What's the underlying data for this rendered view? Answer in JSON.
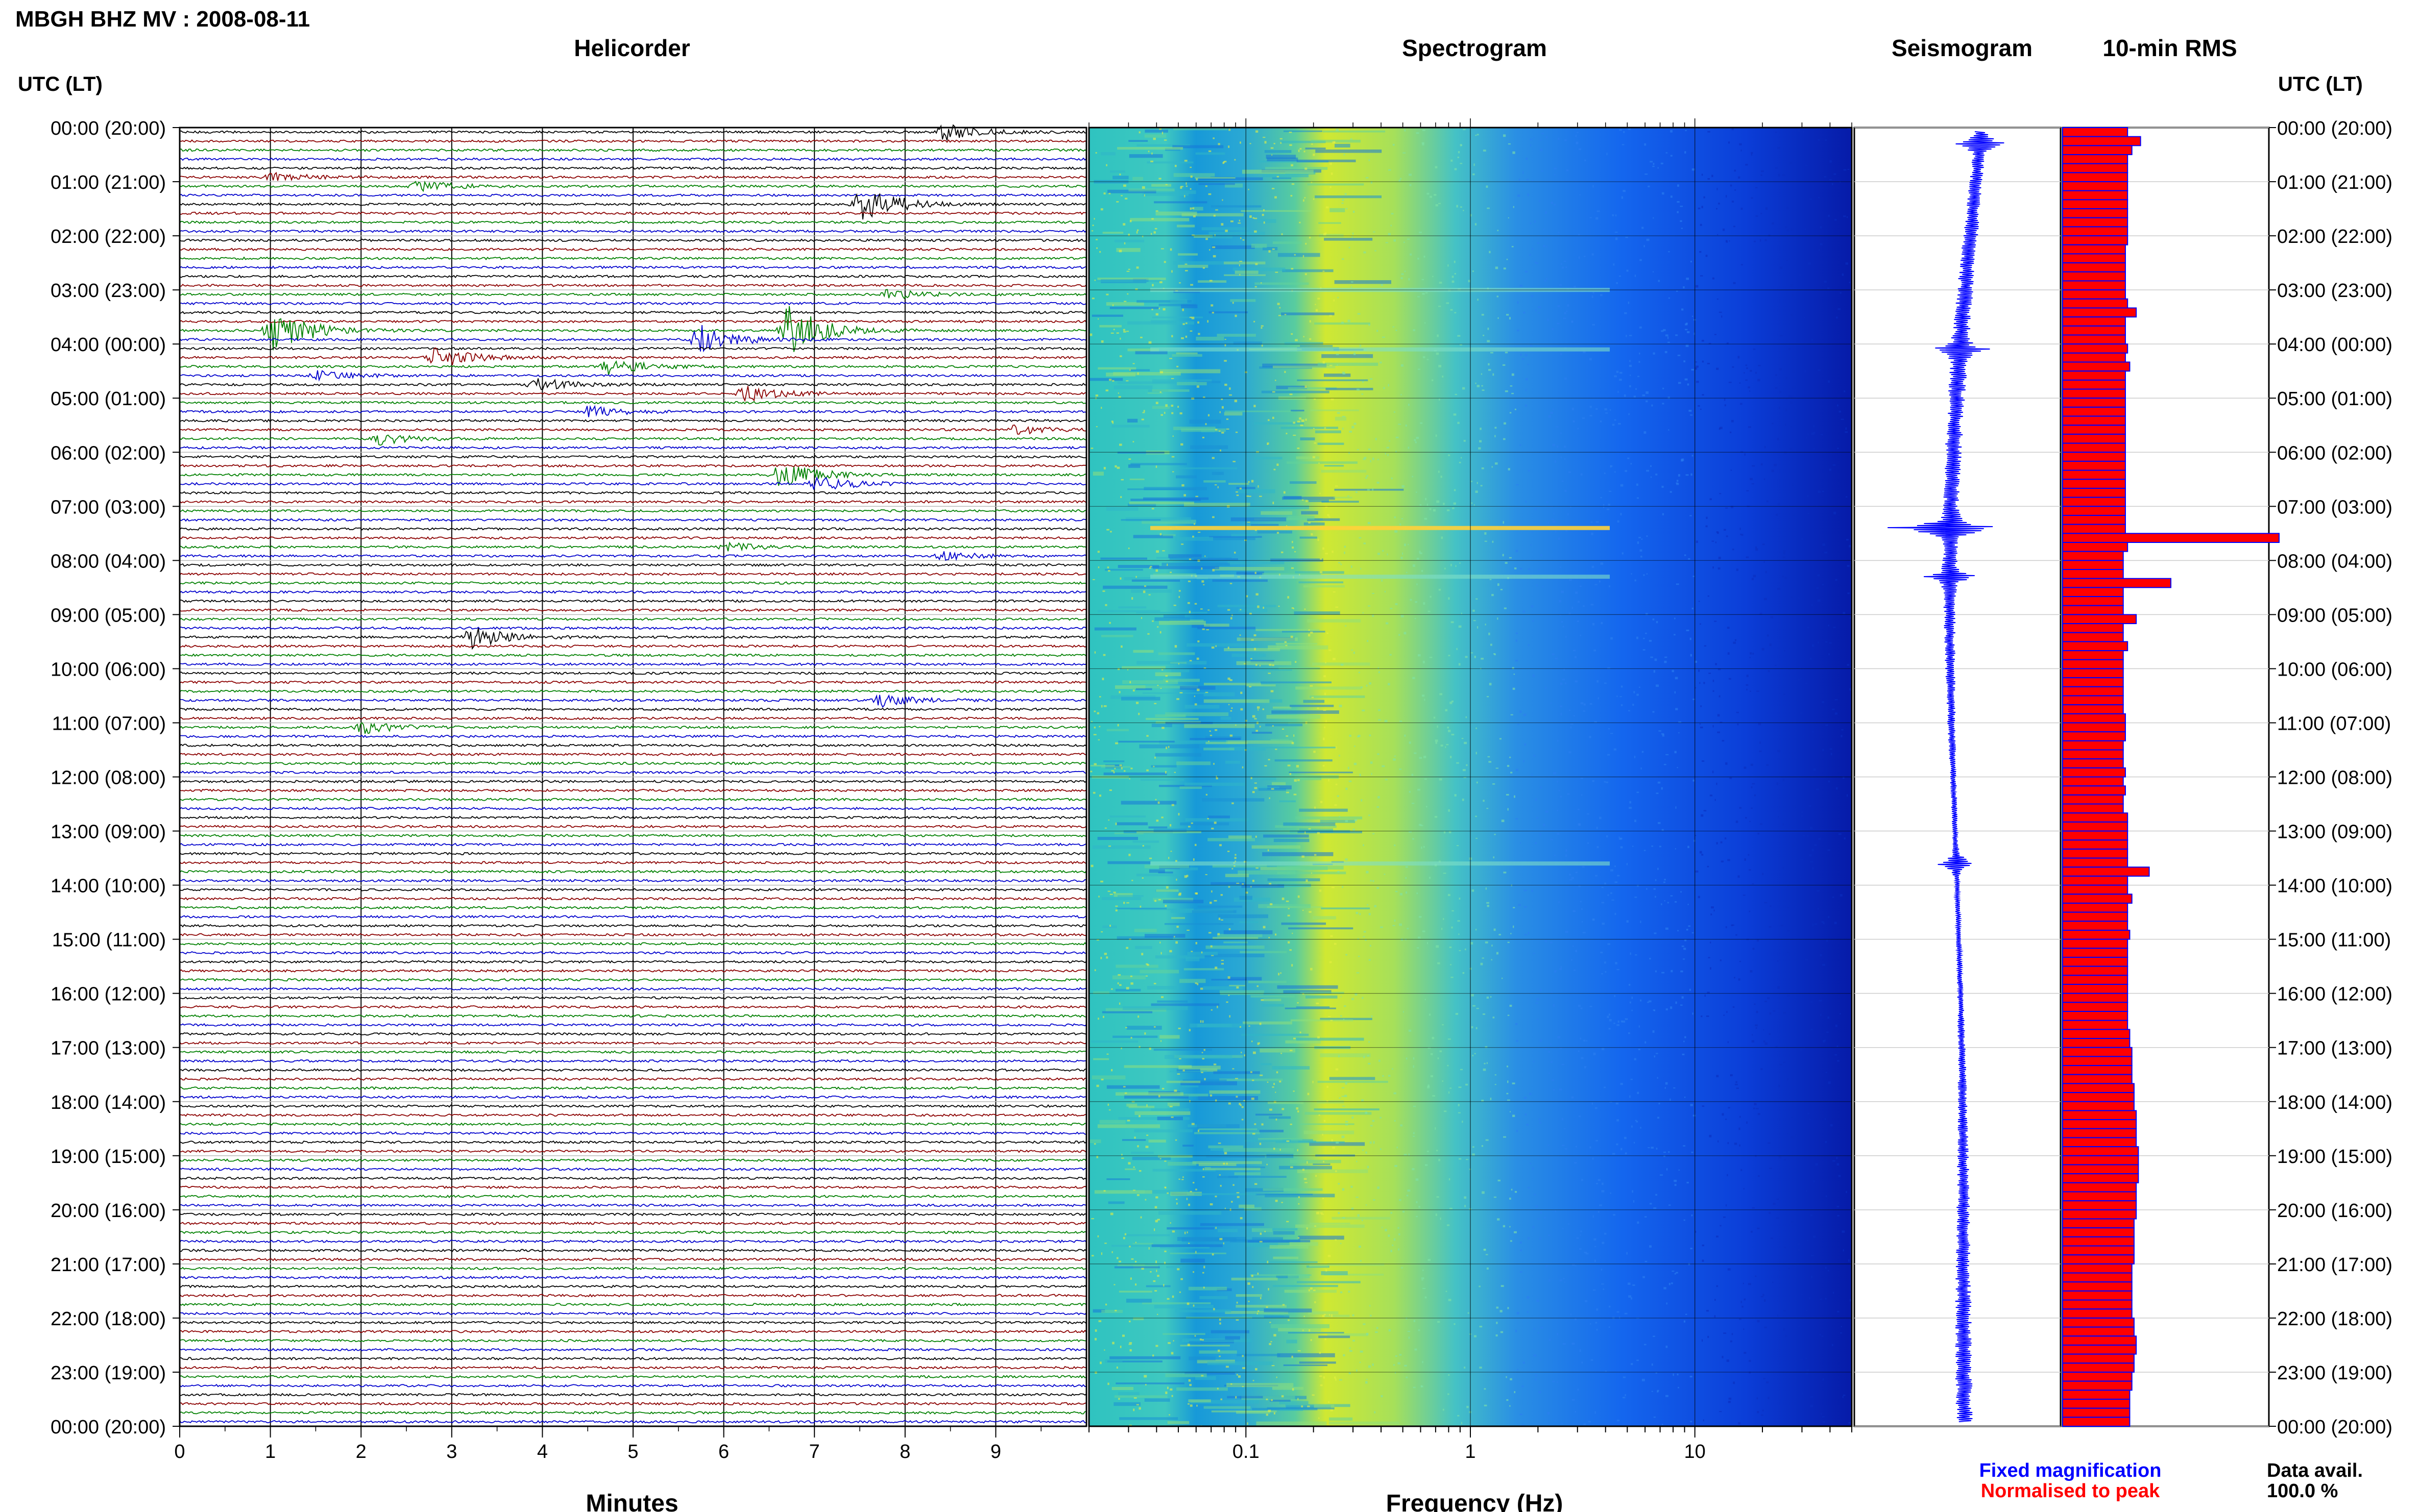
{
  "page": {
    "title": "MBGH BHZ MV : 2008-08-11",
    "panels": {
      "helicorder": "Helicorder",
      "spectrogram": "Spectrogram",
      "seismogram": "Seismogram",
      "rms": "10-min RMS"
    },
    "time_axis_label": "UTC (LT)",
    "footer": {
      "legend_fixed": "Fixed magnification",
      "legend_normalised": "Normalised to peak",
      "data_avail_label": "Data avail.",
      "data_avail_value": "100.0 %"
    },
    "colors": {
      "trace_cycle": [
        "#000000",
        "#8b0000",
        "#008000",
        "#0000cd"
      ],
      "seismogram": "#0000ff",
      "rms_fill": "#ff0000",
      "rms_edge": "#0000ff",
      "legend_fixed": "#0000ff",
      "legend_normalised": "#ff0000"
    }
  },
  "chart_data": [
    {
      "type": "line",
      "name": "helicorder",
      "title": "Helicorder",
      "xlabel": "Minutes",
      "xlim": [
        0,
        10
      ],
      "x_ticks": [
        0,
        1,
        2,
        3,
        4,
        5,
        6,
        7,
        8,
        9
      ],
      "y_ticks": [
        "00:00 (20:00)",
        "01:00 (21:00)",
        "02:00 (22:00)",
        "03:00 (23:00)",
        "04:00 (00:00)",
        "05:00 (01:00)",
        "06:00 (02:00)",
        "07:00 (03:00)",
        "08:00 (04:00)",
        "09:00 (05:00)",
        "10:00 (06:00)",
        "11:00 (07:00)",
        "12:00 (08:00)",
        "13:00 (09:00)",
        "14:00 (10:00)",
        "15:00 (11:00)",
        "16:00 (12:00)",
        "17:00 (13:00)",
        "18:00 (14:00)",
        "19:00 (15:00)",
        "20:00 (16:00)",
        "21:00 (17:00)",
        "22:00 (18:00)",
        "23:00 (19:00)",
        "00:00 (20:00)"
      ],
      "trace_minutes": 10,
      "hours": 24,
      "events": [
        {
          "row": 0,
          "minute": 8.4,
          "amp": 2.0
        },
        {
          "row": 5,
          "minute": 1.0,
          "amp": 1.1
        },
        {
          "row": 6,
          "minute": 2.6,
          "amp": 1.3
        },
        {
          "row": 8,
          "minute": 7.5,
          "amp": 4.5
        },
        {
          "row": 18,
          "minute": 7.8,
          "amp": 1.2
        },
        {
          "row": 22,
          "minute": 1.0,
          "amp": 5.5
        },
        {
          "row": 22,
          "minute": 6.7,
          "amp": 6.0
        },
        {
          "row": 23,
          "minute": 5.7,
          "amp": 3.5
        },
        {
          "row": 25,
          "minute": 2.8,
          "amp": 2.8
        },
        {
          "row": 26,
          "minute": 4.7,
          "amp": 1.8
        },
        {
          "row": 27,
          "minute": 1.5,
          "amp": 1.1
        },
        {
          "row": 28,
          "minute": 3.9,
          "amp": 1.6
        },
        {
          "row": 29,
          "minute": 6.2,
          "amp": 2.0
        },
        {
          "row": 31,
          "minute": 4.5,
          "amp": 1.2
        },
        {
          "row": 33,
          "minute": 9.2,
          "amp": 1.0
        },
        {
          "row": 34,
          "minute": 2.2,
          "amp": 1.2
        },
        {
          "row": 38,
          "minute": 6.6,
          "amp": 3.2
        },
        {
          "row": 39,
          "minute": 7.0,
          "amp": 2.0
        },
        {
          "row": 46,
          "minute": 6.0,
          "amp": 1.0
        },
        {
          "row": 47,
          "minute": 8.4,
          "amp": 1.0
        },
        {
          "row": 56,
          "minute": 3.2,
          "amp": 2.8
        },
        {
          "row": 63,
          "minute": 7.7,
          "amp": 1.5
        },
        {
          "row": 66,
          "minute": 2.0,
          "amp": 1.4
        }
      ]
    },
    {
      "type": "heatmap",
      "name": "spectrogram",
      "title": "Spectrogram",
      "xlabel": "Frequency (Hz)",
      "x_scale": "log",
      "xlim": [
        0.02,
        50
      ],
      "x_ticks": [
        0.1,
        1,
        10
      ],
      "x_tick_labels": [
        "0.1",
        "1",
        "10"
      ],
      "y_range_hours": [
        0,
        24
      ],
      "peak_band_hz": [
        0.25,
        0.6
      ],
      "events_hours": [
        7.4,
        8.3,
        13.6,
        3.0,
        4.1
      ]
    },
    {
      "type": "line",
      "name": "seismogram",
      "title": "Seismogram",
      "y_range_hours": [
        0,
        24
      ],
      "events_hours": [
        0.3,
        4.1,
        7.4,
        8.3,
        13.6
      ]
    },
    {
      "type": "bar",
      "name": "rms",
      "title": "10-min RMS",
      "orientation": "horizontal",
      "bins_per_hour": 6,
      "xlim": [
        0,
        1
      ],
      "values": [
        0.3,
        0.36,
        0.32,
        0.3,
        0.3,
        0.3,
        0.3,
        0.3,
        0.3,
        0.3,
        0.3,
        0.3,
        0.3,
        0.29,
        0.29,
        0.29,
        0.29,
        0.29,
        0.29,
        0.3,
        0.34,
        0.29,
        0.29,
        0.29,
        0.3,
        0.29,
        0.31,
        0.29,
        0.29,
        0.29,
        0.29,
        0.29,
        0.29,
        0.29,
        0.29,
        0.29,
        0.29,
        0.29,
        0.29,
        0.29,
        0.29,
        0.29,
        0.29,
        0.29,
        0.29,
        1.0,
        0.3,
        0.28,
        0.28,
        0.28,
        0.5,
        0.28,
        0.28,
        0.28,
        0.34,
        0.28,
        0.28,
        0.3,
        0.28,
        0.28,
        0.28,
        0.28,
        0.28,
        0.28,
        0.28,
        0.29,
        0.29,
        0.29,
        0.28,
        0.28,
        0.28,
        0.29,
        0.28,
        0.29,
        0.28,
        0.28,
        0.3,
        0.3,
        0.3,
        0.3,
        0.3,
        0.3,
        0.4,
        0.3,
        0.3,
        0.32,
        0.3,
        0.3,
        0.3,
        0.31,
        0.3,
        0.3,
        0.3,
        0.3,
        0.3,
        0.3,
        0.3,
        0.3,
        0.3,
        0.3,
        0.31,
        0.31,
        0.32,
        0.32,
        0.32,
        0.32,
        0.33,
        0.33,
        0.33,
        0.34,
        0.34,
        0.34,
        0.34,
        0.35,
        0.35,
        0.35,
        0.35,
        0.34,
        0.34,
        0.34,
        0.34,
        0.33,
        0.33,
        0.33,
        0.33,
        0.33,
        0.32,
        0.32,
        0.32,
        0.32,
        0.32,
        0.32,
        0.33,
        0.33,
        0.34,
        0.34,
        0.33,
        0.33,
        0.32,
        0.32,
        0.31,
        0.31,
        0.31,
        0.31
      ]
    }
  ]
}
